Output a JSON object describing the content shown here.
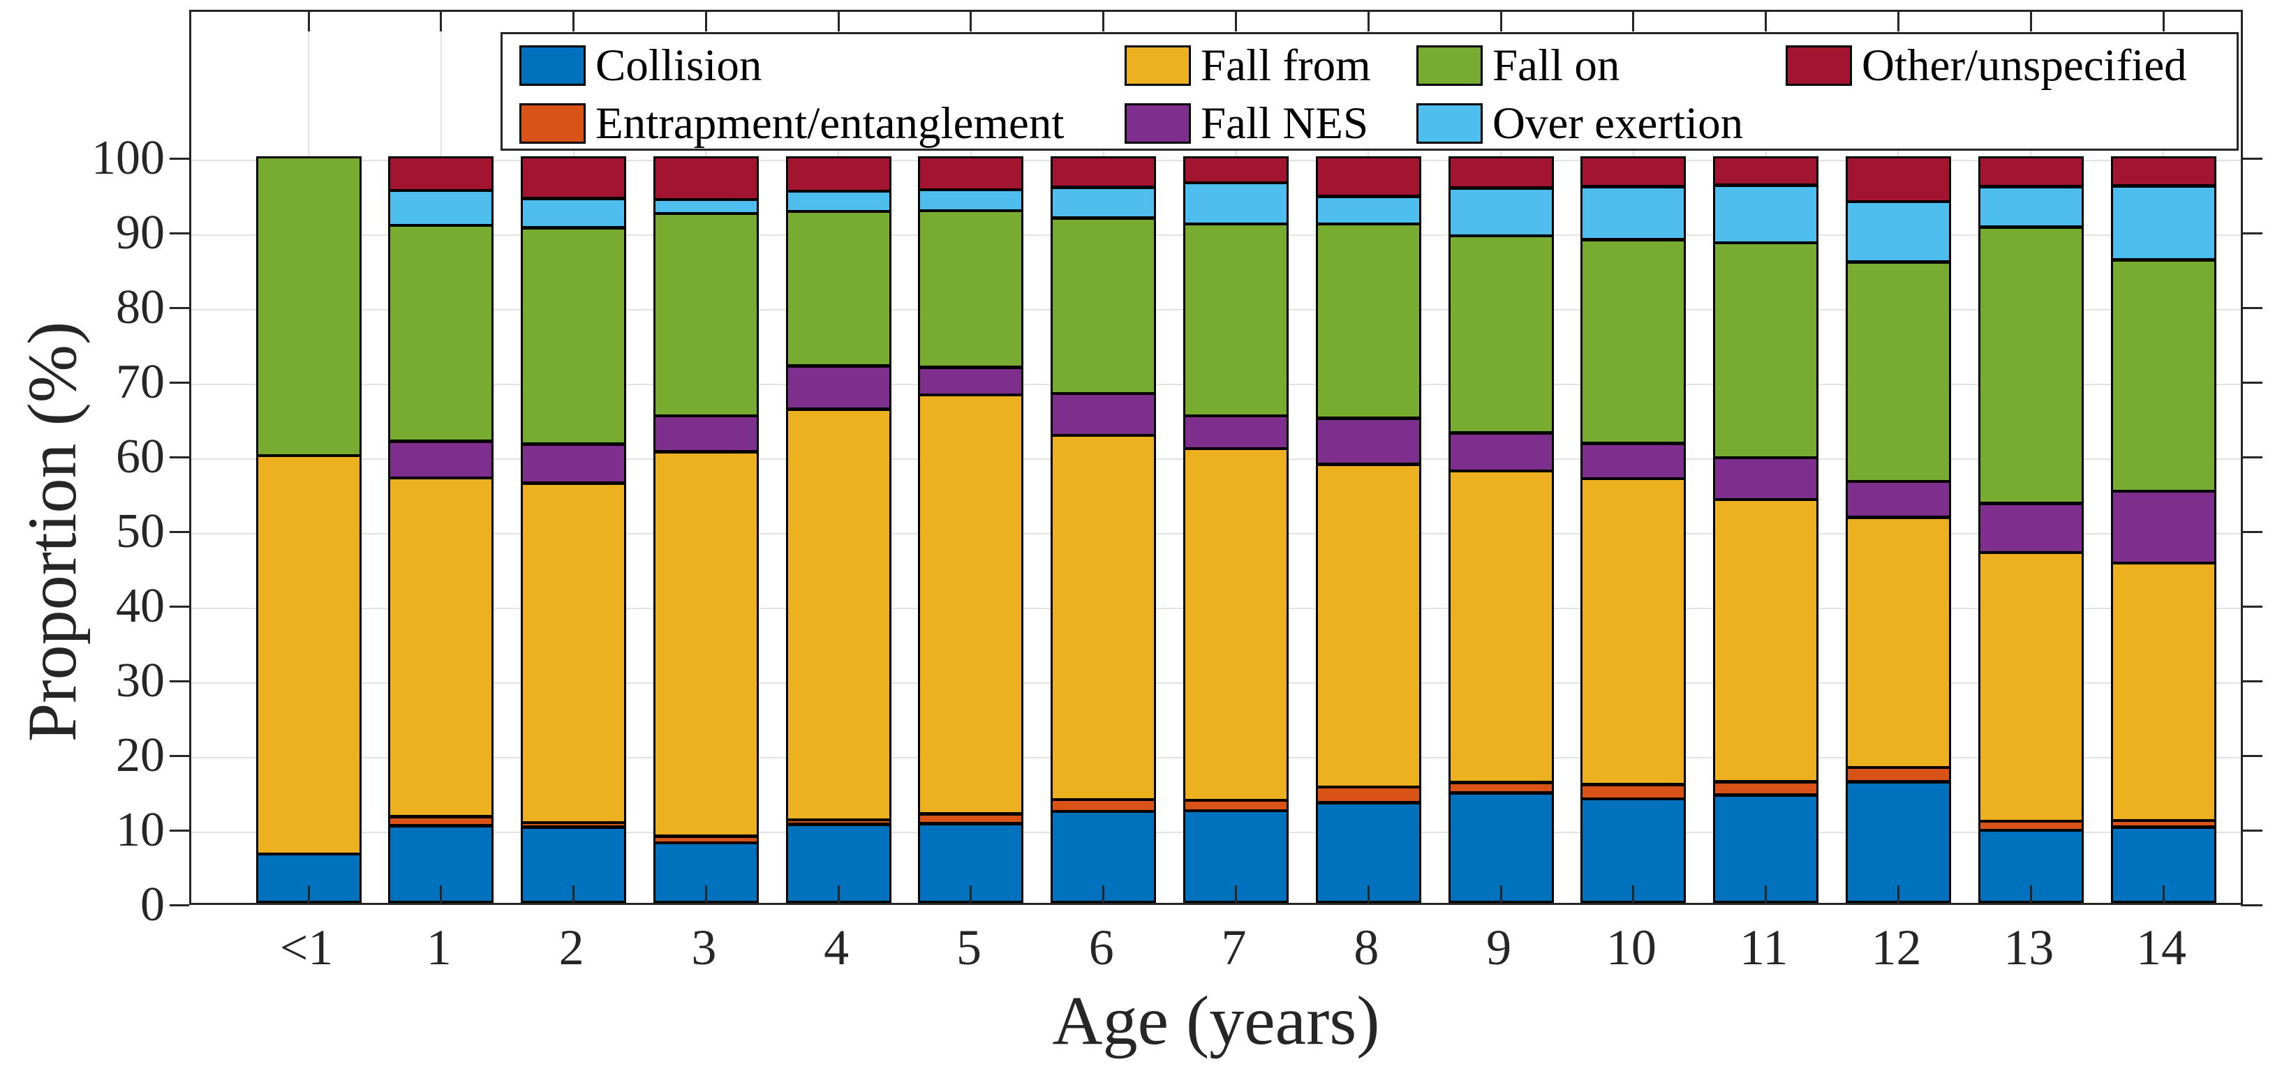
{
  "chart_data": {
    "type": "bar",
    "stacked": true,
    "title": "",
    "xlabel": "Age (years)",
    "ylabel": "Proportion (%)",
    "categories": [
      "<1",
      "1",
      "2",
      "3",
      "4",
      "5",
      "6",
      "7",
      "8",
      "9",
      "10",
      "11",
      "12",
      "13",
      "14"
    ],
    "series": [
      {
        "name": "Collision",
        "color": "#0072BD",
        "values": [
          6.6,
          10.4,
          10.2,
          8.1,
          10.6,
          10.7,
          12.3,
          12.4,
          13.5,
          14.8,
          14.0,
          14.5,
          16.3,
          9.8,
          10.2
        ]
      },
      {
        "name": "Entrapment/entanglement",
        "color": "#D95319",
        "values": [
          0,
          1.2,
          0.6,
          0.9,
          0.6,
          1.3,
          1.6,
          1.4,
          2.1,
          1.4,
          1.9,
          1.8,
          1.9,
          1.2,
          0.9
        ]
      },
      {
        "name": "Fall from",
        "color": "#EDB120",
        "values": [
          53.4,
          45.4,
          45.5,
          51.5,
          55.0,
          56.1,
          48.8,
          47.1,
          43.2,
          41.7,
          41.0,
          37.8,
          33.5,
          36.0,
          34.5
        ]
      },
      {
        "name": "Fall NES",
        "color": "#7E2F8E",
        "values": [
          0,
          4.9,
          5.2,
          4.8,
          5.8,
          3.7,
          5.6,
          4.4,
          6.2,
          5.1,
          4.7,
          5.6,
          4.8,
          6.6,
          9.6
        ]
      },
      {
        "name": "Fall on",
        "color": "#77AC30",
        "values": [
          40.0,
          28.9,
          29.0,
          27.1,
          20.7,
          21.0,
          23.5,
          25.7,
          26.0,
          26.4,
          27.3,
          28.8,
          29.4,
          37.0,
          31.0
        ]
      },
      {
        "name": "Over exertion",
        "color": "#4DBEEE",
        "values": [
          0,
          4.7,
          3.9,
          1.9,
          2.7,
          2.8,
          4.1,
          5.5,
          3.7,
          6.4,
          7.1,
          7.7,
          8.1,
          5.4,
          9.9
        ]
      },
      {
        "name": "Other/unspecified",
        "color": "#A2142F",
        "values": [
          0,
          4.5,
          5.6,
          5.7,
          4.6,
          4.4,
          4.1,
          3.5,
          5.3,
          4.2,
          4.0,
          3.8,
          6.0,
          4.0,
          3.9
        ]
      }
    ],
    "ylim": [
      0,
      120
    ],
    "yticks": [
      0,
      10,
      20,
      30,
      40,
      50,
      60,
      70,
      80,
      90,
      100
    ],
    "grid": true,
    "legend": {
      "position": "top-inside",
      "rows": [
        [
          "Collision",
          "Fall from",
          "Fall on",
          "Other/unspecified"
        ],
        [
          "Entrapment/entanglement",
          "Fall NES",
          "Over exertion"
        ]
      ]
    },
    "colors": {
      "axis": "#262626",
      "grid": "#e3e3e3",
      "bar_edge": "#000000",
      "background": "#ffffff"
    }
  }
}
